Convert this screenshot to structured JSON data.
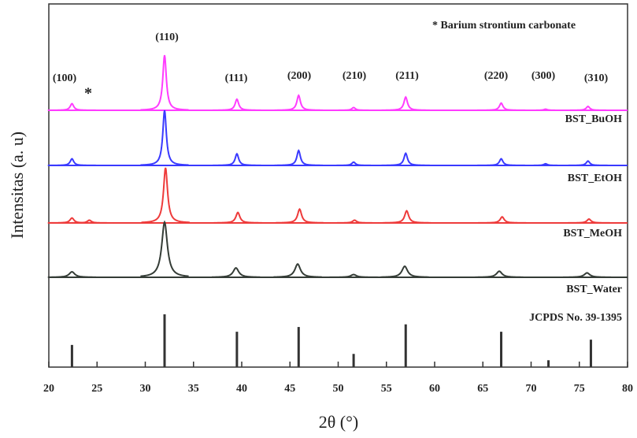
{
  "chart_data": {
    "type": "line",
    "x_label": "2θ (°)",
    "y_label": "Intensitas (a. u)",
    "xlim": [
      20,
      80
    ],
    "xticks": [
      20,
      25,
      30,
      35,
      40,
      45,
      50,
      55,
      60,
      65,
      70,
      75,
      80
    ],
    "legend_note": "* Barium strontium carbonate",
    "annotations": [
      "(100)",
      "*",
      "(110)",
      "(111)",
      "(200)",
      "(210)",
      "(211)",
      "(220)",
      "(300)",
      "(310)"
    ],
    "series": [
      {
        "name": "BST_BuOH",
        "color": "#ff3cff",
        "x": [
          22.4,
          32.0,
          39.5,
          45.9,
          51.6,
          57.0,
          66.9,
          71.5,
          75.9
        ],
        "values": [
          12,
          100,
          20,
          27,
          5,
          24,
          13,
          2,
          7
        ]
      },
      {
        "name": "BST_EtOH",
        "color": "#3a3aff",
        "x": [
          22.4,
          32.0,
          39.5,
          45.9,
          51.6,
          57.0,
          66.9,
          71.5,
          75.9
        ],
        "values": [
          12,
          100,
          21,
          27,
          6,
          22,
          12,
          3,
          8
        ]
      },
      {
        "name": "BST_MeOH",
        "color": "#ee3b3b",
        "x": [
          22.4,
          24.2,
          32.1,
          39.6,
          46.0,
          51.7,
          57.1,
          67.0,
          76.0
        ],
        "values": [
          9,
          5,
          100,
          19,
          25,
          5,
          22,
          11,
          7
        ]
      },
      {
        "name": "BST_Water",
        "color": "#343c36",
        "x": [
          22.4,
          32.0,
          39.4,
          45.8,
          51.6,
          56.9,
          66.7,
          75.8
        ],
        "values": [
          10,
          100,
          17,
          24,
          5,
          20,
          11,
          8
        ]
      }
    ],
    "reference": {
      "name": "JCPDS No. 39-1395",
      "color": "#333333",
      "x": [
        22.4,
        32.0,
        39.5,
        45.9,
        51.6,
        57.0,
        66.9,
        71.8,
        76.2
      ],
      "values": [
        42,
        100,
        67,
        76,
        25,
        81,
        67,
        13,
        52
      ]
    }
  }
}
